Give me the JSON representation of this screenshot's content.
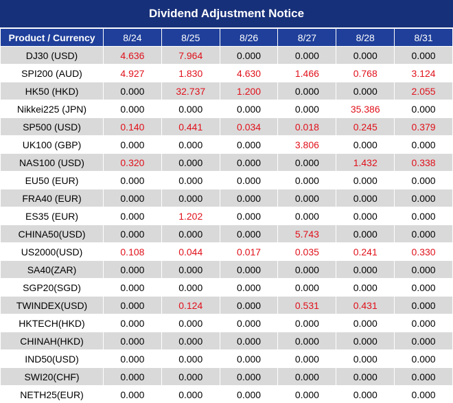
{
  "title": "Dividend Adjustment Notice",
  "header": {
    "first_col": "Product / Currency",
    "dates": [
      "8/24",
      "8/25",
      "8/26",
      "8/27",
      "8/28",
      "8/31"
    ]
  },
  "colors": {
    "title_bg": "#17307a",
    "header_bg": "#1f3f9a",
    "shade": "#d9d9d9",
    "positive": "#e0101a"
  },
  "rows": [
    {
      "product": "DJ30 (USD)",
      "values": [
        "4.636",
        "7.964",
        "0.000",
        "0.000",
        "0.000",
        "0.000"
      ]
    },
    {
      "product": "SPI200 (AUD)",
      "values": [
        "4.927",
        "1.830",
        "4.630",
        "1.466",
        "0.768",
        "3.124"
      ]
    },
    {
      "product": "HK50 (HKD)",
      "values": [
        "0.000",
        "32.737",
        "1.200",
        "0.000",
        "0.000",
        "2.055"
      ]
    },
    {
      "product": "Nikkei225 (JPN)",
      "values": [
        "0.000",
        "0.000",
        "0.000",
        "0.000",
        "35.386",
        "0.000"
      ]
    },
    {
      "product": "SP500 (USD)",
      "values": [
        "0.140",
        "0.441",
        "0.034",
        "0.018",
        "0.245",
        "0.379"
      ]
    },
    {
      "product": "UK100 (GBP)",
      "values": [
        "0.000",
        "0.000",
        "0.000",
        "3.806",
        "0.000",
        "0.000"
      ]
    },
    {
      "product": "NAS100 (USD)",
      "values": [
        "0.320",
        "0.000",
        "0.000",
        "0.000",
        "1.432",
        "0.338"
      ]
    },
    {
      "product": "EU50 (EUR)",
      "values": [
        "0.000",
        "0.000",
        "0.000",
        "0.000",
        "0.000",
        "0.000"
      ]
    },
    {
      "product": "FRA40 (EUR)",
      "values": [
        "0.000",
        "0.000",
        "0.000",
        "0.000",
        "0.000",
        "0.000"
      ]
    },
    {
      "product": "ES35 (EUR)",
      "values": [
        "0.000",
        "1.202",
        "0.000",
        "0.000",
        "0.000",
        "0.000"
      ]
    },
    {
      "product": "CHINA50(USD)",
      "values": [
        "0.000",
        "0.000",
        "0.000",
        "5.743",
        "0.000",
        "0.000"
      ]
    },
    {
      "product": "US2000(USD)",
      "values": [
        "0.108",
        "0.044",
        "0.017",
        "0.035",
        "0.241",
        "0.330"
      ]
    },
    {
      "product": "SA40(ZAR)",
      "values": [
        "0.000",
        "0.000",
        "0.000",
        "0.000",
        "0.000",
        "0.000"
      ]
    },
    {
      "product": "SGP20(SGD)",
      "values": [
        "0.000",
        "0.000",
        "0.000",
        "0.000",
        "0.000",
        "0.000"
      ]
    },
    {
      "product": "TWINDEX(USD)",
      "values": [
        "0.000",
        "0.124",
        "0.000",
        "0.531",
        "0.431",
        "0.000"
      ]
    },
    {
      "product": "HKTECH(HKD)",
      "values": [
        "0.000",
        "0.000",
        "0.000",
        "0.000",
        "0.000",
        "0.000"
      ]
    },
    {
      "product": "CHINAH(HKD)",
      "values": [
        "0.000",
        "0.000",
        "0.000",
        "0.000",
        "0.000",
        "0.000"
      ]
    },
    {
      "product": "IND50(USD)",
      "values": [
        "0.000",
        "0.000",
        "0.000",
        "0.000",
        "0.000",
        "0.000"
      ]
    },
    {
      "product": "SWI20(CHF)",
      "values": [
        "0.000",
        "0.000",
        "0.000",
        "0.000",
        "0.000",
        "0.000"
      ]
    },
    {
      "product": "NETH25(EUR)",
      "values": [
        "0.000",
        "0.000",
        "0.000",
        "0.000",
        "0.000",
        "0.000"
      ]
    }
  ]
}
